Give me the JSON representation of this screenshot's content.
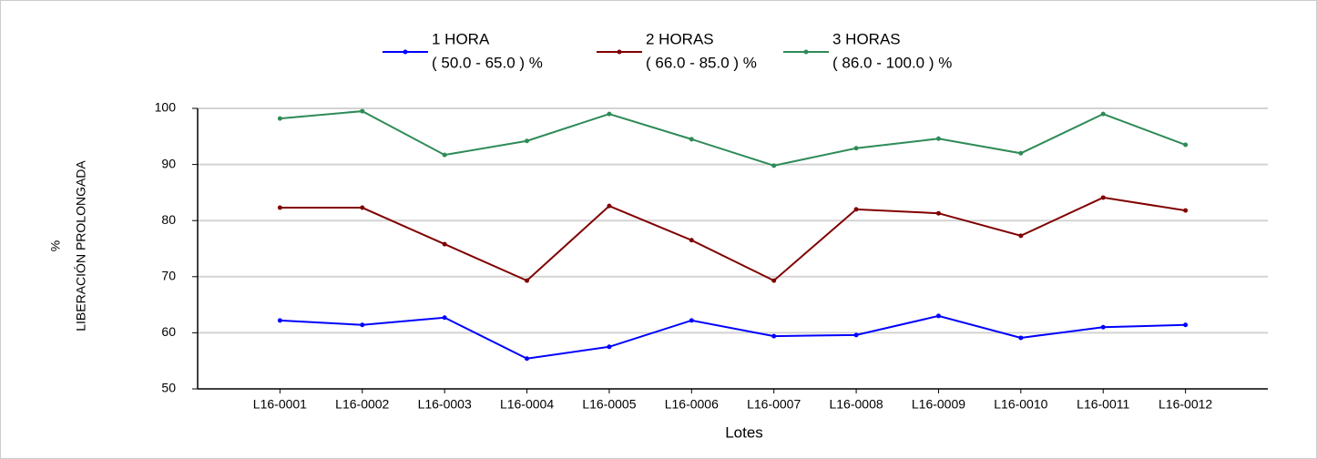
{
  "chart_data": {
    "type": "line",
    "xlabel": "Lotes",
    "ylabel": [
      "%",
      "LIBERACIÓN PROLONGADA"
    ],
    "categories": [
      "L16-0001",
      "L16-0002",
      "L16-0003",
      "L16-0004",
      "L16-0005",
      "L16-0006",
      "L16-0007",
      "L16-0008",
      "L16-0009",
      "L16-0010",
      "L16-0011",
      "L16-0012"
    ],
    "series": [
      {
        "name": "1 HORA",
        "range": "( 50.0 - 65.0 ) %",
        "color": "#0000ff",
        "values": [
          62.2,
          61.4,
          62.7,
          55.4,
          57.5,
          62.2,
          59.4,
          59.6,
          63.0,
          59.1,
          61.0,
          61.4
        ]
      },
      {
        "name": "2 HORAS",
        "range": "( 66.0 - 85.0 ) %",
        "color": "#800000",
        "values": [
          82.3,
          82.3,
          75.8,
          69.3,
          82.6,
          76.5,
          69.3,
          82.0,
          81.3,
          77.3,
          84.1,
          81.8
        ]
      },
      {
        "name": "3 HORAS",
        "range": "( 86.0 - 100.0 ) %",
        "color": "#2e8b57",
        "values": [
          98.2,
          99.5,
          91.7,
          94.2,
          99.0,
          94.5,
          89.8,
          92.9,
          94.6,
          92.0,
          99.0,
          93.5
        ]
      }
    ],
    "ylim": [
      50,
      100
    ],
    "yticks": [
      50,
      60,
      70,
      80,
      90,
      100
    ],
    "grid": true
  }
}
